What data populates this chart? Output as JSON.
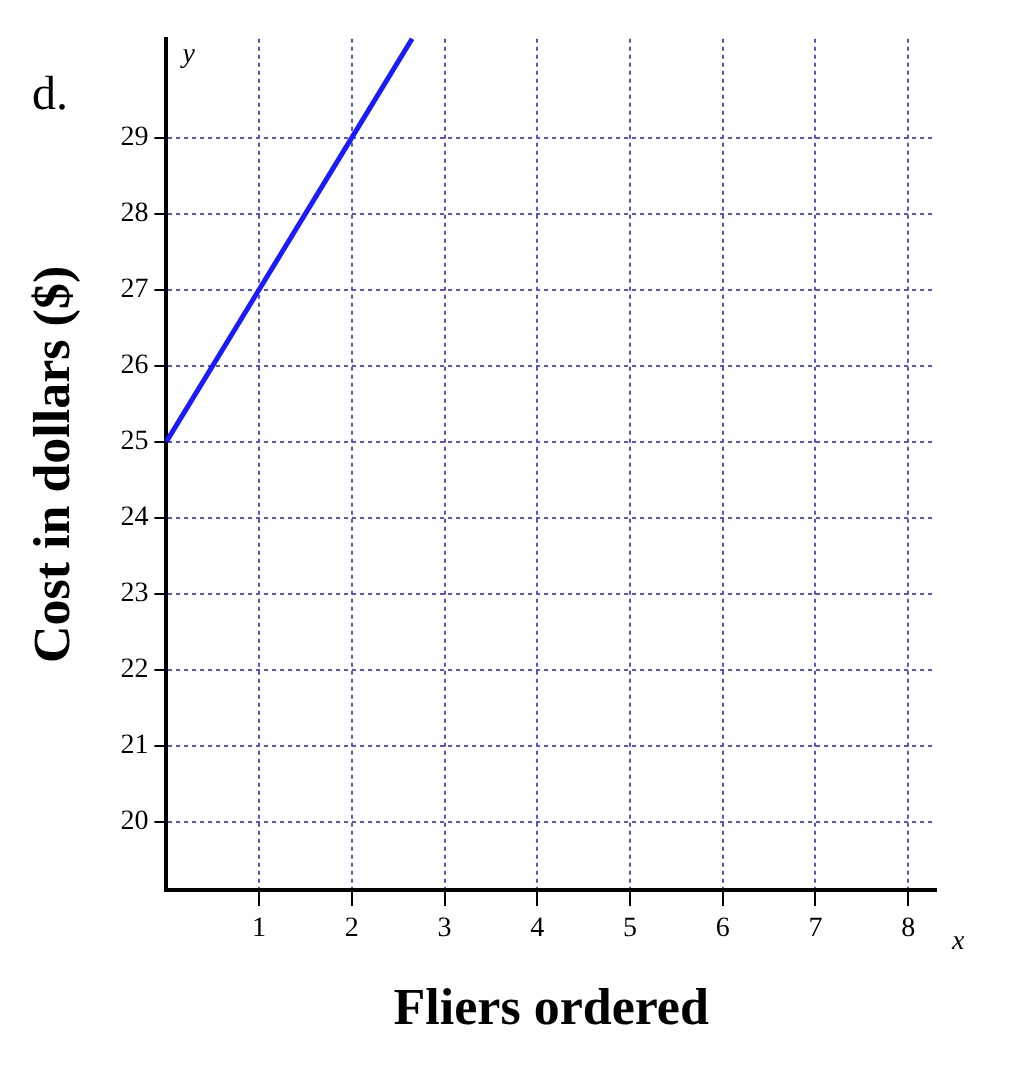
{
  "chart_data": {
    "type": "line",
    "xlabel": "Fliers ordered",
    "ylabel": "Cost in dollars ($)",
    "annotations": [
      "d.",
      "x",
      "y"
    ],
    "x": [
      0,
      2,
      2.65
    ],
    "series": [
      {
        "color": "#1a1aff",
        "values": [
          25,
          29,
          30.3
        ]
      }
    ],
    "xlim": [
      0,
      8.3
    ],
    "xticks": [
      1,
      2,
      3,
      4,
      5,
      6,
      7,
      8
    ],
    "ylim": [
      19.1,
      30.3
    ],
    "yticks": [
      20,
      21,
      22,
      23,
      24,
      25,
      26,
      27,
      28,
      29
    ],
    "grid": true,
    "legend": false,
    "marker": "none",
    "line_style": "solid"
  }
}
